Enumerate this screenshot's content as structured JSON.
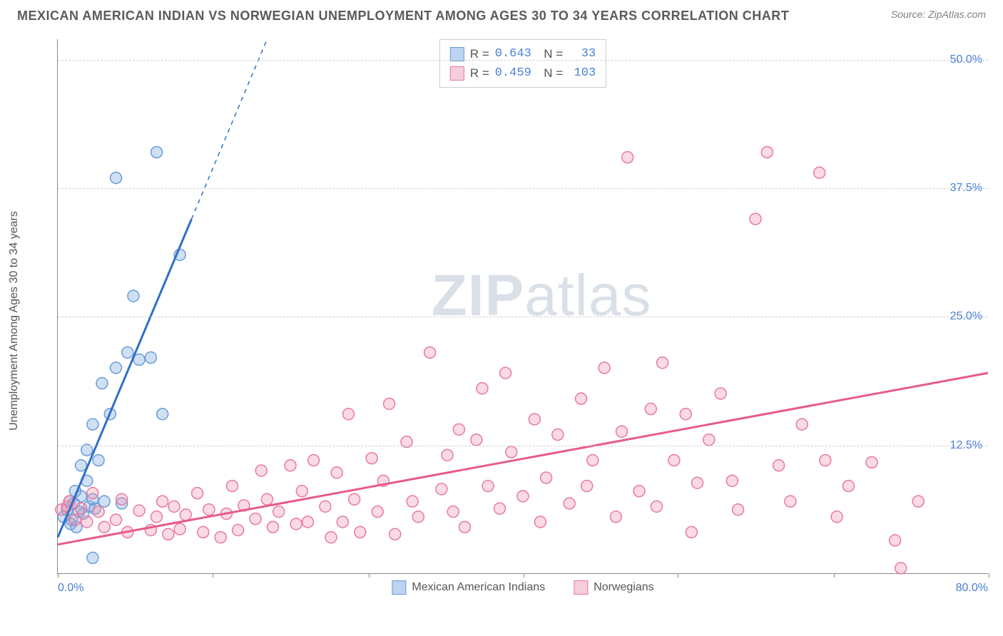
{
  "title": "MEXICAN AMERICAN INDIAN VS NORWEGIAN UNEMPLOYMENT AMONG AGES 30 TO 34 YEARS CORRELATION CHART",
  "source": "Source: ZipAtlas.com",
  "watermark_zip": "ZIP",
  "watermark_atlas": "atlas",
  "chart": {
    "type": "scatter",
    "ylabel": "Unemployment Among Ages 30 to 34 years",
    "xlim": [
      0,
      80
    ],
    "ylim": [
      0,
      52
    ],
    "xticks": [
      0,
      13.3,
      26.7,
      40,
      53.3,
      66.7,
      80
    ],
    "xtick_labels_shown": {
      "left": "0.0%",
      "right": "80.0%"
    },
    "yticks": [
      12.5,
      25,
      37.5,
      50
    ],
    "ytick_labels": [
      "12.5%",
      "25.0%",
      "37.5%",
      "50.0%"
    ],
    "grid_color": "#d0d0d0",
    "background_color": "#ffffff",
    "axis_color": "#888888",
    "tick_label_color": "#4a7fd8",
    "label_fontsize": 16,
    "title_fontsize": 18,
    "series": [
      {
        "name": "Mexican American Indians",
        "color_fill": "rgba(120,165,220,0.35)",
        "color_stroke": "#6a9bd8",
        "swatch_fill": "#bcd4ef",
        "swatch_border": "#6a9bd8",
        "marker_radius": 8,
        "R": "0.643",
        "N": "33",
        "trend": {
          "x1": 0,
          "y1": 3.5,
          "x2": 18,
          "y2": 52,
          "solid_until_x": 11.5,
          "color": "#2f6fc9",
          "width": 3
        },
        "points": [
          [
            0.5,
            5.5
          ],
          [
            0.8,
            6.2
          ],
          [
            1.0,
            7.0
          ],
          [
            1.1,
            4.8
          ],
          [
            1.2,
            5.2
          ],
          [
            1.4,
            6.8
          ],
          [
            1.5,
            8.0
          ],
          [
            1.6,
            4.5
          ],
          [
            1.8,
            6.0
          ],
          [
            2.0,
            7.5
          ],
          [
            2.0,
            10.5
          ],
          [
            2.2,
            5.8
          ],
          [
            2.5,
            9.0
          ],
          [
            2.5,
            12.0
          ],
          [
            2.7,
            6.5
          ],
          [
            3.0,
            7.2
          ],
          [
            3.0,
            14.5
          ],
          [
            3.2,
            6.3
          ],
          [
            3.5,
            11.0
          ],
          [
            3.8,
            18.5
          ],
          [
            4.0,
            7.0
          ],
          [
            4.5,
            15.5
          ],
          [
            5.0,
            20.0
          ],
          [
            5.0,
            38.5
          ],
          [
            5.5,
            6.8
          ],
          [
            6.0,
            21.5
          ],
          [
            6.5,
            27.0
          ],
          [
            7.0,
            20.8
          ],
          [
            8.0,
            21.0
          ],
          [
            8.5,
            41.0
          ],
          [
            9.0,
            15.5
          ],
          [
            10.5,
            31.0
          ],
          [
            3.0,
            1.5
          ]
        ]
      },
      {
        "name": "Norwegians",
        "color_fill": "rgba(240,150,175,0.35)",
        "color_stroke": "#e77aa0",
        "swatch_fill": "#f7cdd9",
        "swatch_border": "#e77aa0",
        "marker_radius": 8,
        "R": "0.459",
        "N": "103",
        "trend": {
          "x1": 0,
          "y1": 2.8,
          "x2": 80,
          "y2": 19.5,
          "solid_until_x": 80,
          "color": "#e85a8c",
          "width": 3
        },
        "points": [
          [
            0.3,
            6.2
          ],
          [
            0.8,
            6.5
          ],
          [
            1.0,
            7.0
          ],
          [
            1.5,
            5.2
          ],
          [
            2.0,
            6.3
          ],
          [
            2.5,
            5.0
          ],
          [
            3.0,
            7.8
          ],
          [
            3.5,
            6.0
          ],
          [
            4.0,
            4.5
          ],
          [
            5.0,
            5.2
          ],
          [
            5.5,
            7.2
          ],
          [
            6.0,
            4.0
          ],
          [
            7.0,
            6.1
          ],
          [
            8.0,
            4.2
          ],
          [
            8.5,
            5.5
          ],
          [
            9.0,
            7.0
          ],
          [
            9.5,
            3.8
          ],
          [
            10.0,
            6.5
          ],
          [
            10.5,
            4.3
          ],
          [
            11.0,
            5.7
          ],
          [
            12.0,
            7.8
          ],
          [
            12.5,
            4.0
          ],
          [
            13.0,
            6.2
          ],
          [
            14.0,
            3.5
          ],
          [
            14.5,
            5.8
          ],
          [
            15.0,
            8.5
          ],
          [
            15.5,
            4.2
          ],
          [
            16.0,
            6.6
          ],
          [
            17.0,
            5.3
          ],
          [
            17.5,
            10.0
          ],
          [
            18.0,
            7.2
          ],
          [
            18.5,
            4.5
          ],
          [
            19.0,
            6.0
          ],
          [
            20.0,
            10.5
          ],
          [
            20.5,
            4.8
          ],
          [
            21.0,
            8.0
          ],
          [
            21.5,
            5.0
          ],
          [
            22.0,
            11.0
          ],
          [
            23.0,
            6.5
          ],
          [
            23.5,
            3.5
          ],
          [
            24.0,
            9.8
          ],
          [
            24.5,
            5.0
          ],
          [
            25.0,
            15.5
          ],
          [
            25.5,
            7.2
          ],
          [
            26.0,
            4.0
          ],
          [
            27.0,
            11.2
          ],
          [
            27.5,
            6.0
          ],
          [
            28.0,
            9.0
          ],
          [
            28.5,
            16.5
          ],
          [
            29.0,
            3.8
          ],
          [
            30.0,
            12.8
          ],
          [
            30.5,
            7.0
          ],
          [
            31.0,
            5.5
          ],
          [
            32.0,
            21.5
          ],
          [
            33.0,
            8.2
          ],
          [
            33.5,
            11.5
          ],
          [
            34.0,
            6.0
          ],
          [
            34.5,
            14.0
          ],
          [
            35.0,
            4.5
          ],
          [
            36.0,
            13.0
          ],
          [
            36.5,
            18.0
          ],
          [
            37.0,
            8.5
          ],
          [
            38.0,
            6.3
          ],
          [
            38.5,
            19.5
          ],
          [
            39.0,
            11.8
          ],
          [
            40.0,
            7.5
          ],
          [
            41.0,
            15.0
          ],
          [
            41.5,
            5.0
          ],
          [
            42.0,
            9.3
          ],
          [
            43.0,
            13.5
          ],
          [
            44.0,
            6.8
          ],
          [
            45.0,
            17.0
          ],
          [
            45.5,
            8.5
          ],
          [
            46.0,
            11.0
          ],
          [
            47.0,
            20.0
          ],
          [
            48.0,
            5.5
          ],
          [
            48.5,
            13.8
          ],
          [
            49.0,
            40.5
          ],
          [
            50.0,
            8.0
          ],
          [
            51.0,
            16.0
          ],
          [
            51.5,
            6.5
          ],
          [
            52.0,
            20.5
          ],
          [
            53.0,
            11.0
          ],
          [
            54.0,
            15.5
          ],
          [
            54.5,
            4.0
          ],
          [
            55.0,
            8.8
          ],
          [
            56.0,
            13.0
          ],
          [
            57.0,
            17.5
          ],
          [
            58.0,
            9.0
          ],
          [
            58.5,
            6.2
          ],
          [
            60.0,
            34.5
          ],
          [
            61.0,
            41.0
          ],
          [
            62.0,
            10.5
          ],
          [
            63.0,
            7.0
          ],
          [
            64.0,
            14.5
          ],
          [
            65.5,
            39.0
          ],
          [
            66.0,
            11.0
          ],
          [
            67.0,
            5.5
          ],
          [
            68.0,
            8.5
          ],
          [
            70.0,
            10.8
          ],
          [
            72.0,
            3.2
          ],
          [
            72.5,
            0.5
          ],
          [
            74.0,
            7.0
          ]
        ]
      }
    ],
    "bottom_legend": [
      {
        "label": "Mexican American Indians",
        "fill": "#bcd4ef",
        "border": "#6a9bd8"
      },
      {
        "label": "Norwegians",
        "fill": "#f7cdd9",
        "border": "#e77aa0"
      }
    ]
  }
}
